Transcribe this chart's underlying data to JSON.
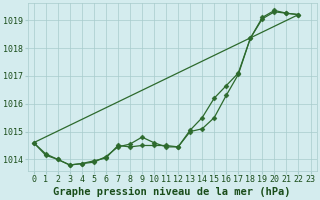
{
  "title": "Graphe pression niveau de la mer (hPa)",
  "background_color": "#d4ecee",
  "grid_color": "#a8cccc",
  "line_color": "#2d6a2d",
  "marker_color": "#2d6a2d",
  "label_color": "#1a4d1a",
  "xlim": [
    -0.5,
    23.5
  ],
  "ylim": [
    1013.6,
    1019.6
  ],
  "yticks": [
    1014,
    1015,
    1016,
    1017,
    1018,
    1019
  ],
  "xticks": [
    0,
    1,
    2,
    3,
    4,
    5,
    6,
    7,
    8,
    9,
    10,
    11,
    12,
    13,
    14,
    15,
    16,
    17,
    18,
    19,
    20,
    21,
    22,
    23
  ],
  "series": [
    {
      "x": [
        0,
        1,
        2,
        3,
        4,
        5,
        6,
        7,
        8,
        9,
        10,
        11,
        12,
        13,
        14,
        15,
        16,
        17,
        18,
        19,
        20,
        21,
        22
      ],
      "y": [
        1014.6,
        1014.2,
        1014.0,
        1013.8,
        1013.85,
        1013.9,
        1014.1,
        1014.45,
        1014.55,
        1014.8,
        1014.6,
        1014.45,
        1014.45,
        1015.05,
        1015.5,
        1016.2,
        1016.65,
        1017.1,
        1018.35,
        1019.1,
        1019.35,
        1019.25,
        1019.2
      ],
      "marker": "D",
      "linewidth": 0.9,
      "markersize": 2.5
    },
    {
      "x": [
        0,
        1,
        2,
        3,
        4,
        5,
        6,
        7,
        8,
        9,
        10,
        11,
        12,
        13,
        14,
        15,
        16,
        17,
        18,
        19,
        20,
        21,
        22
      ],
      "y": [
        1014.6,
        1014.15,
        1014.0,
        1013.8,
        1013.85,
        1013.95,
        1014.05,
        1014.5,
        1014.45,
        1014.5,
        1014.5,
        1014.5,
        1014.45,
        1015.0,
        1015.1,
        1015.5,
        1016.3,
        1017.05,
        1018.35,
        1019.05,
        1019.3,
        1019.25,
        1019.2
      ],
      "marker": "D",
      "linewidth": 0.9,
      "markersize": 2.5
    },
    {
      "x": [
        0,
        22
      ],
      "y": [
        1014.6,
        1019.2
      ],
      "marker": null,
      "linewidth": 0.9,
      "markersize": 0
    }
  ],
  "title_fontsize": 7.5,
  "tick_fontsize": 6.0
}
